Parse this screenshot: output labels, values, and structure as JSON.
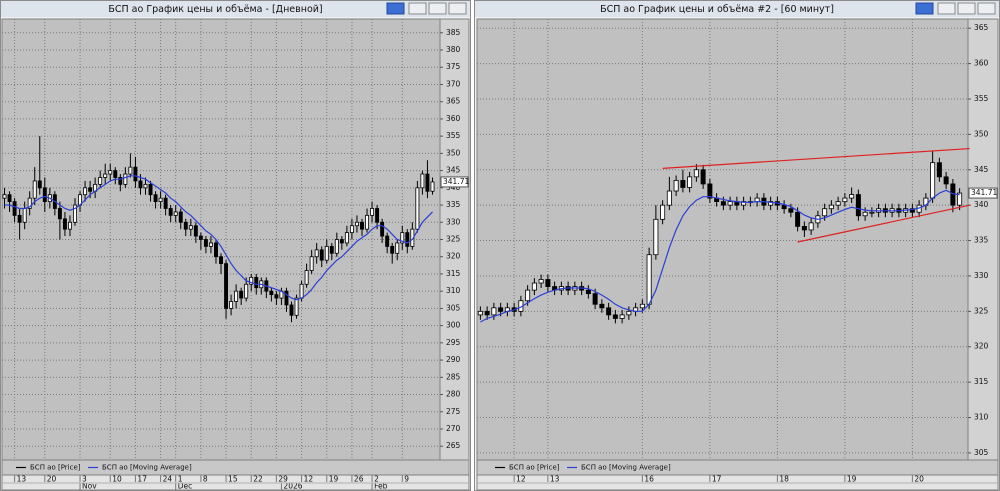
{
  "chart_data": [
    {
      "type": "candlestick",
      "title": "БСП ао График цены и объёма - [Дневной]",
      "ylim": [
        261,
        389
      ],
      "yticks": [
        265,
        270,
        275,
        280,
        285,
        290,
        295,
        300,
        305,
        310,
        315,
        320,
        325,
        330,
        335,
        340,
        345,
        350,
        355,
        360,
        365,
        370,
        375,
        380,
        385
      ],
      "grid": true,
      "categories": [
        null,
        null,
        "13",
        null,
        null,
        null,
        null,
        null,
        "20",
        null,
        null,
        null,
        null,
        null,
        null,
        "3",
        null,
        null,
        null,
        null,
        null,
        "10",
        null,
        null,
        null,
        null,
        "17",
        null,
        null,
        null,
        null,
        "24",
        null,
        null,
        "1",
        null,
        null,
        null,
        null,
        "8",
        null,
        null,
        null,
        null,
        "15",
        null,
        null,
        null,
        null,
        "22",
        null,
        null,
        null,
        null,
        "29",
        null,
        null,
        null,
        null,
        "12",
        null,
        null,
        null,
        null,
        "19",
        null,
        null,
        null,
        null,
        "26",
        null,
        null,
        null,
        "2",
        null,
        null,
        null,
        null,
        null,
        "9",
        null,
        null,
        null,
        null,
        null,
        null
      ],
      "months": [
        null,
        null,
        null,
        null,
        null,
        null,
        null,
        null,
        null,
        null,
        null,
        null,
        null,
        null,
        null,
        "Nov",
        null,
        null,
        null,
        null,
        null,
        null,
        null,
        null,
        null,
        null,
        null,
        null,
        null,
        null,
        null,
        null,
        null,
        null,
        "Dec",
        null,
        null,
        null,
        null,
        null,
        null,
        null,
        null,
        null,
        null,
        null,
        null,
        null,
        null,
        null,
        null,
        null,
        null,
        null,
        null,
        "2026",
        null,
        null,
        null,
        null,
        null,
        null,
        null,
        null,
        null,
        null,
        null,
        null,
        null,
        null,
        null,
        null,
        null,
        "Feb",
        null,
        null,
        null,
        null,
        null,
        null,
        null,
        null,
        null,
        null,
        null,
        null
      ],
      "series": [
        {
          "name": "БСП ао [Price]",
          "color": "#000000",
          "open": [
            337,
            338,
            336,
            332,
            330,
            334,
            337,
            342,
            340,
            336,
            338,
            334,
            331,
            328,
            330,
            335,
            338,
            340,
            339,
            341,
            343,
            344,
            345,
            343,
            341,
            344,
            346,
            342,
            340,
            341,
            338,
            336,
            337,
            334,
            332,
            333,
            330,
            328,
            329,
            326,
            325,
            323,
            324,
            320,
            318,
            305,
            307,
            310,
            308,
            312,
            314,
            311,
            313,
            310,
            309,
            308,
            310,
            306,
            303,
            308,
            312,
            316,
            320,
            322,
            319,
            323,
            321,
            325,
            324,
            327,
            329,
            330,
            328,
            332,
            334,
            330,
            326,
            323,
            321,
            324,
            327,
            323,
            328,
            340,
            344,
            339
          ],
          "high": [
            340,
            339,
            337,
            334,
            336,
            339,
            346,
            355,
            343,
            340,
            339,
            336,
            333,
            332,
            337,
            339,
            342,
            342,
            343,
            345,
            347,
            347,
            346,
            344,
            346,
            350,
            349,
            344,
            343,
            342,
            339,
            339,
            338,
            335,
            335,
            334,
            331,
            331,
            330,
            327,
            326,
            326,
            325,
            321,
            319,
            309,
            312,
            311,
            314,
            315,
            315,
            314,
            314,
            311,
            310,
            311,
            311,
            307,
            309,
            313,
            318,
            322,
            324,
            323,
            325,
            324,
            327,
            326,
            329,
            331,
            332,
            331,
            334,
            336,
            335,
            331,
            327,
            324,
            325,
            329,
            328,
            330,
            342,
            345,
            348,
            343
          ],
          "low": [
            334,
            333,
            330,
            325,
            328,
            332,
            335,
            338,
            333,
            334,
            332,
            325,
            326,
            326,
            329,
            333,
            336,
            337,
            337,
            340,
            341,
            342,
            341,
            339,
            340,
            343,
            340,
            338,
            338,
            336,
            334,
            334,
            332,
            330,
            330,
            328,
            326,
            326,
            324,
            322,
            321,
            321,
            318,
            315,
            302,
            303,
            305,
            306,
            307,
            310,
            309,
            309,
            308,
            307,
            306,
            306,
            304,
            301,
            302,
            307,
            311,
            315,
            318,
            317,
            318,
            319,
            320,
            322,
            323,
            325,
            327,
            326,
            327,
            330,
            328,
            324,
            321,
            318,
            319,
            322,
            321,
            322,
            327,
            338,
            337,
            338
          ],
          "close": [
            338,
            336,
            332,
            330,
            334,
            337,
            342,
            340,
            336,
            338,
            334,
            331,
            328,
            330,
            335,
            338,
            340,
            339,
            341,
            343,
            344,
            345,
            343,
            341,
            344,
            346,
            342,
            340,
            341,
            338,
            336,
            337,
            334,
            332,
            333,
            330,
            328,
            329,
            326,
            325,
            323,
            324,
            320,
            318,
            305,
            307,
            310,
            308,
            312,
            314,
            311,
            313,
            310,
            309,
            308,
            310,
            306,
            303,
            308,
            312,
            316,
            320,
            322,
            319,
            323,
            321,
            325,
            324,
            327,
            329,
            330,
            328,
            332,
            334,
            330,
            326,
            323,
            321,
            324,
            327,
            323,
            328,
            340,
            344,
            339,
            341.71
          ]
        },
        {
          "name": "БСП ао [Moving Average]",
          "color": "#2a3fd8",
          "values": [
            335,
            335,
            334.5,
            334,
            334,
            334.5,
            336,
            337,
            337.5,
            337,
            336,
            335,
            334,
            333.5,
            334,
            335,
            336.5,
            338,
            339,
            340,
            341,
            342,
            342.5,
            342.5,
            343,
            343.5,
            343.5,
            343,
            342.5,
            341.5,
            340.5,
            339.5,
            338.5,
            337,
            336,
            334.5,
            333,
            332,
            330.5,
            329,
            327.5,
            326.5,
            325,
            323,
            320.5,
            318,
            316,
            314.5,
            313,
            312.5,
            312,
            312,
            311.5,
            311,
            310.5,
            310,
            309,
            308,
            307.5,
            308,
            309,
            310.5,
            312.5,
            314,
            316,
            317.5,
            319,
            320,
            321.5,
            323,
            324.5,
            325.5,
            326.5,
            328,
            329,
            329,
            328,
            326.5,
            325,
            324.5,
            324,
            325,
            327.5,
            330,
            331.5,
            333
          ]
        }
      ]
    },
    {
      "type": "candlestick",
      "title": "БСП ао График цены и объёма #2 - [60 минут]",
      "ylim": [
        304,
        366.3
      ],
      "yticks": [
        305,
        310,
        315,
        320,
        325,
        330,
        335,
        340,
        345,
        350,
        355,
        360,
        365
      ],
      "grid": true,
      "categories": [
        null,
        null,
        null,
        null,
        null,
        "12",
        null,
        null,
        null,
        null,
        "13",
        null,
        null,
        null,
        null,
        null,
        null,
        null,
        null,
        null,
        null,
        null,
        null,
        null,
        "16",
        null,
        null,
        null,
        null,
        null,
        null,
        null,
        null,
        null,
        "17",
        null,
        null,
        null,
        null,
        null,
        null,
        null,
        null,
        null,
        "18",
        null,
        null,
        null,
        null,
        null,
        null,
        null,
        null,
        null,
        "19",
        null,
        null,
        null,
        null,
        null,
        null,
        null,
        null,
        null,
        "20",
        null,
        null,
        null,
        null,
        null,
        null,
        null
      ],
      "series": [
        {
          "name": "БСП ао [Price]",
          "color": "#000000",
          "open": [
            324.5,
            325,
            324.5,
            325.5,
            325,
            325.5,
            325,
            326.5,
            328,
            329,
            329.5,
            328.5,
            328,
            328.5,
            328,
            328.5,
            328,
            327.5,
            326,
            325.5,
            324.5,
            324,
            324.5,
            325,
            325.5,
            326,
            333,
            338,
            340,
            342,
            343.5,
            342.5,
            344,
            345,
            343,
            341,
            340.5,
            340,
            340.5,
            340,
            340.5,
            340.5,
            341,
            340,
            340.5,
            340,
            339.5,
            339,
            337,
            336.5,
            337.5,
            338.5,
            339.5,
            340,
            340.5,
            341,
            341.5,
            338.5,
            339,
            339,
            339.5,
            339,
            339.5,
            339,
            339.5,
            339,
            340,
            341,
            346,
            344,
            343,
            340
          ],
          "high": [
            325.7,
            325.7,
            326.2,
            326.2,
            326.2,
            326.2,
            327.2,
            328.7,
            329.7,
            330.2,
            330.2,
            329.2,
            329.2,
            329.2,
            329.2,
            329.2,
            328.7,
            328.2,
            326.7,
            326.2,
            325.2,
            325.2,
            325.7,
            326.2,
            326.7,
            334,
            340,
            340.7,
            344,
            344.2,
            345,
            344.7,
            345.8,
            345.7,
            343.7,
            341.7,
            341.2,
            341.2,
            341.2,
            341.2,
            341.2,
            341.7,
            341.7,
            341.2,
            341.2,
            340.7,
            340.2,
            339.7,
            337.7,
            338.2,
            339.2,
            340.2,
            340.7,
            341.2,
            341.7,
            342.5,
            342.2,
            339.7,
            339.7,
            340.2,
            340.2,
            340.2,
            340.2,
            340.2,
            340.2,
            340.7,
            341.7,
            347.7,
            346.7,
            344.7,
            343.7,
            342.4
          ],
          "low": [
            323.8,
            323.8,
            323.8,
            324.3,
            324.3,
            324.3,
            324.3,
            325.8,
            327.3,
            328.3,
            327.8,
            327.3,
            327.3,
            327.3,
            327.3,
            327.3,
            326.8,
            325.3,
            324.8,
            323.8,
            323.3,
            323.3,
            323.8,
            324.3,
            324.8,
            325.3,
            332.3,
            337.3,
            339.3,
            341.3,
            341.8,
            341.8,
            343.3,
            342.3,
            340.3,
            339.8,
            339.3,
            339.3,
            339.3,
            339.3,
            339.8,
            339.8,
            339.3,
            339.3,
            339.3,
            338.8,
            338.3,
            336.3,
            335.5,
            335.8,
            336.8,
            337.8,
            338.8,
            339.3,
            339.8,
            340.3,
            337.8,
            337.8,
            338.3,
            338.3,
            338.3,
            338.3,
            338.3,
            338.3,
            338.3,
            338.3,
            339.3,
            340.3,
            343.3,
            342.3,
            339,
            339.3
          ],
          "close": [
            325,
            324.5,
            325.5,
            325,
            325.5,
            325,
            326.5,
            328,
            329,
            329.5,
            328.5,
            328,
            328.5,
            328,
            328.5,
            328,
            327.5,
            326,
            325.5,
            324.5,
            324,
            324.5,
            325,
            325.5,
            326,
            333,
            338,
            340,
            342,
            343.5,
            342.5,
            344,
            345,
            343,
            341,
            340.5,
            340,
            340.5,
            340,
            340.5,
            340.5,
            341,
            340,
            340.5,
            340,
            339.5,
            339,
            337,
            336.5,
            337.5,
            338.5,
            339.5,
            340,
            340.5,
            341,
            341.5,
            338.5,
            339,
            339,
            339.5,
            339,
            339.5,
            339,
            339.5,
            339,
            340,
            341,
            346,
            344,
            343,
            340,
            341.71
          ]
        },
        {
          "name": "БСП ао [Moving Average]",
          "color": "#2a3fd8",
          "values": [
            323.5,
            324,
            324.3,
            324.6,
            325,
            325.2,
            325.6,
            326.2,
            326.8,
            327.3,
            327.7,
            328,
            328.2,
            328.3,
            328.3,
            328.3,
            328.2,
            327.8,
            327.3,
            326.7,
            326,
            325.5,
            325.2,
            325,
            325,
            326,
            328,
            331,
            334,
            336.5,
            338.5,
            339.8,
            340.7,
            341.2,
            341.2,
            341,
            340.8,
            340.6,
            340.5,
            340.4,
            340.4,
            340.5,
            340.5,
            340.4,
            340.3,
            340.1,
            339.8,
            339.2,
            338.6,
            338.2,
            338,
            338.2,
            338.6,
            339,
            339.4,
            339.7,
            339.5,
            339.3,
            339.2,
            339.2,
            339.2,
            339.2,
            339.2,
            339.3,
            339.4,
            339.6,
            340,
            341,
            341.7,
            342.1,
            341.6,
            341.5
          ]
        }
      ],
      "trendlines": [
        {
          "color": "#e02020",
          "x": [
            27,
            72.5
          ],
          "y": [
            345.2,
            348
          ]
        },
        {
          "color": "#e02020",
          "x": [
            47,
            72.5
          ],
          "y": [
            334.8,
            340
          ]
        }
      ]
    }
  ]
}
